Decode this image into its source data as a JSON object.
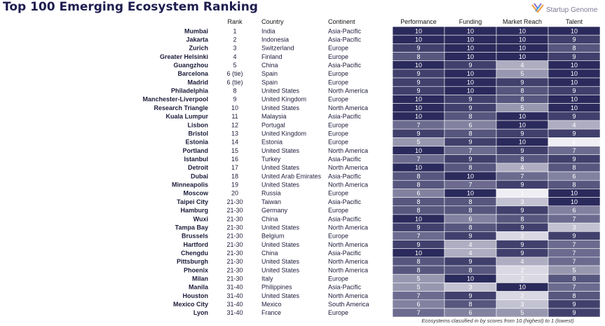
{
  "title": "Top 100 Emerging Ecosystem Ranking",
  "logo": {
    "text": "Startup Genome",
    "icon": "startup-genome-logo-icon"
  },
  "footnote": "Ecosystems classified in by scores from 10 (highest) to 1 (lowest)",
  "columns": {
    "rank": "Rank",
    "country": "Country",
    "continent": "Continent",
    "performance": "Performance",
    "funding": "Funding",
    "market_reach": "Market Reach",
    "talent": "Talent"
  },
  "colors": {
    "score_high": "#2b2a5c",
    "score_low": "#efeef4",
    "text_dark": "#1b1b3a",
    "cell_text": "#ffffff"
  },
  "chart_data": {
    "type": "heatmap",
    "title": "Top 100 Emerging Ecosystem Ranking",
    "metrics": [
      "Performance",
      "Funding",
      "Market Reach",
      "Talent"
    ],
    "score_range": [
      1,
      10
    ],
    "rows": [
      {
        "ecosystem": "Mumbai",
        "rank": "1",
        "country": "India",
        "continent": "Asia-Pacific",
        "scores": [
          10,
          10,
          10,
          10
        ]
      },
      {
        "ecosystem": "Jakarta",
        "rank": "2",
        "country": "Indonesia",
        "continent": "Asia-Pacific",
        "scores": [
          10,
          10,
          10,
          9
        ]
      },
      {
        "ecosystem": "Zurich",
        "rank": "3",
        "country": "Switzerland",
        "continent": "Europe",
        "scores": [
          9,
          10,
          10,
          8
        ]
      },
      {
        "ecosystem": "Greater Helsinki",
        "rank": "4",
        "country": "Finland",
        "continent": "Europe",
        "scores": [
          8,
          10,
          10,
          9
        ]
      },
      {
        "ecosystem": "Guangzhou",
        "rank": "5",
        "country": "China",
        "continent": "Asia-Pacific",
        "scores": [
          10,
          9,
          4,
          10
        ]
      },
      {
        "ecosystem": "Barcelona",
        "rank": "6 (tie)",
        "country": "Spain",
        "continent": "Europe",
        "scores": [
          9,
          10,
          5,
          10
        ]
      },
      {
        "ecosystem": "Madrid",
        "rank": "6 (tie)",
        "country": "Spain",
        "continent": "Europe",
        "scores": [
          9,
          10,
          9,
          10
        ]
      },
      {
        "ecosystem": "Philadelphia",
        "rank": "8",
        "country": "United States",
        "continent": "North America",
        "scores": [
          9,
          10,
          8,
          9
        ]
      },
      {
        "ecosystem": "Manchester-Liverpool",
        "rank": "9",
        "country": "United Kingdom",
        "continent": "Europe",
        "scores": [
          10,
          9,
          8,
          10
        ]
      },
      {
        "ecosystem": "Research Triangle",
        "rank": "10",
        "country": "United States",
        "continent": "North America",
        "scores": [
          10,
          9,
          5,
          10
        ]
      },
      {
        "ecosystem": "Kuala Lumpur",
        "rank": "11",
        "country": "Malaysia",
        "continent": "Asia-Pacific",
        "scores": [
          10,
          8,
          10,
          9
        ]
      },
      {
        "ecosystem": "Lisbon",
        "rank": "12",
        "country": "Portugal",
        "continent": "Europe",
        "scores": [
          7,
          6,
          10,
          4
        ]
      },
      {
        "ecosystem": "Bristol",
        "rank": "13",
        "country": "United Kingdom",
        "continent": "Europe",
        "scores": [
          9,
          8,
          9,
          9
        ]
      },
      {
        "ecosystem": "Estonia",
        "rank": "14",
        "country": "Estonia",
        "continent": "Europe",
        "scores": [
          5,
          9,
          10,
          1
        ]
      },
      {
        "ecosystem": "Portland",
        "rank": "15",
        "country": "United States",
        "continent": "North America",
        "scores": [
          10,
          7,
          9,
          7
        ]
      },
      {
        "ecosystem": "Istanbul",
        "rank": "16",
        "country": "Turkey",
        "continent": "Asia-Pacific",
        "scores": [
          7,
          9,
          8,
          9
        ]
      },
      {
        "ecosystem": "Detroit",
        "rank": "17",
        "country": "United States",
        "continent": "North America",
        "scores": [
          10,
          8,
          4,
          8
        ]
      },
      {
        "ecosystem": "Dubai",
        "rank": "18",
        "country": "United Arab Emirates",
        "continent": "Asia-Pacific",
        "scores": [
          8,
          10,
          7,
          6
        ]
      },
      {
        "ecosystem": "Minneapolis",
        "rank": "19",
        "country": "United States",
        "continent": "North America",
        "scores": [
          8,
          7,
          9,
          8
        ]
      },
      {
        "ecosystem": "Moscow",
        "rank": "20",
        "country": "Russia",
        "continent": "Europe",
        "scores": [
          6,
          10,
          1,
          10
        ]
      },
      {
        "ecosystem": "Taipei City",
        "rank": "21-30",
        "country": "Taiwan",
        "continent": "Asia-Pacific",
        "scores": [
          8,
          8,
          3,
          10
        ]
      },
      {
        "ecosystem": "Hamburg",
        "rank": "21-30",
        "country": "Germany",
        "continent": "Europe",
        "scores": [
          8,
          8,
          9,
          6
        ]
      },
      {
        "ecosystem": "Wuxi",
        "rank": "21-30",
        "country": "China",
        "continent": "Asia-Pacific",
        "scores": [
          10,
          6,
          8,
          7
        ]
      },
      {
        "ecosystem": "Tampa Bay",
        "rank": "21-30",
        "country": "United States",
        "continent": "North America",
        "scores": [
          9,
          8,
          9,
          3
        ]
      },
      {
        "ecosystem": "Brussels",
        "rank": "21-30",
        "country": "Belgium",
        "continent": "Europe",
        "scores": [
          7,
          9,
          2,
          9
        ]
      },
      {
        "ecosystem": "Hartford",
        "rank": "21-30",
        "country": "United States",
        "continent": "North America",
        "scores": [
          9,
          4,
          9,
          7
        ]
      },
      {
        "ecosystem": "Chengdu",
        "rank": "21-30",
        "country": "China",
        "continent": "Asia-Pacific",
        "scores": [
          10,
          4,
          9,
          7
        ]
      },
      {
        "ecosystem": "Pittsburgh",
        "rank": "21-30",
        "country": "United States",
        "continent": "North America",
        "scores": [
          8,
          9,
          4,
          7
        ]
      },
      {
        "ecosystem": "Phoenix",
        "rank": "21-30",
        "country": "United States",
        "continent": "North America",
        "scores": [
          8,
          8,
          2,
          5
        ]
      },
      {
        "ecosystem": "Milan",
        "rank": "21-30",
        "country": "Italy",
        "continent": "Europe",
        "scores": [
          5,
          10,
          2,
          8
        ]
      },
      {
        "ecosystem": "Manila",
        "rank": "31-40",
        "country": "Philippines",
        "continent": "Asia-Pacific",
        "scores": [
          5,
          3,
          10,
          7
        ]
      },
      {
        "ecosystem": "Houston",
        "rank": "31-40",
        "country": "United States",
        "continent": "North America",
        "scores": [
          7,
          9,
          2,
          8
        ]
      },
      {
        "ecosystem": "Mexico City",
        "rank": "31-40",
        "country": "Mexico",
        "continent": "South America",
        "scores": [
          6,
          8,
          3,
          9
        ]
      },
      {
        "ecosystem": "Lyon",
        "rank": "31-40",
        "country": "France",
        "continent": "Europe",
        "scores": [
          7,
          6,
          5,
          9
        ]
      }
    ]
  }
}
